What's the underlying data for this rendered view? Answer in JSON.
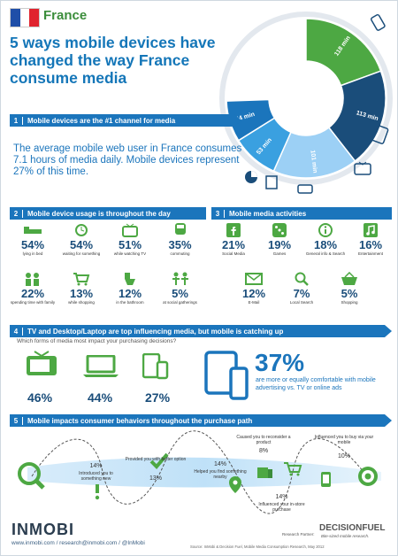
{
  "header": {
    "country": "France",
    "title": "5 ways mobile devices have changed the way France consume media"
  },
  "donut": {
    "segments": [
      {
        "label": "118 min",
        "color": "#4da843"
      },
      {
        "label": "113 min",
        "color": "#1a4d7a"
      },
      {
        "label": "101 min",
        "color": "#9cd0f5"
      },
      {
        "label": "53 min",
        "color": "#3aa0e0"
      },
      {
        "label": "44 min",
        "color": "#1b75bc"
      }
    ]
  },
  "section1": {
    "num": "1",
    "title": "Mobile devices are the #1 channel for media",
    "body": "The average mobile web user in France consumes 7.1 hours of media daily. Mobile devices represent 27% of this time."
  },
  "section2": {
    "num": "2",
    "title": "Mobile device usage is throughout the day",
    "items": [
      {
        "pct": "54%",
        "label": "lying in bed",
        "icon": "bed-icon"
      },
      {
        "pct": "54%",
        "label": "waiting for something",
        "icon": "clock-icon"
      },
      {
        "pct": "51%",
        "label": "while watching TV",
        "icon": "tv-icon"
      },
      {
        "pct": "35%",
        "label": "commuting",
        "icon": "train-icon"
      },
      {
        "pct": "22%",
        "label": "spending time with family",
        "icon": "family-icon"
      },
      {
        "pct": "13%",
        "label": "while shopping",
        "icon": "cart-icon"
      },
      {
        "pct": "12%",
        "label": "in the bathroom",
        "icon": "toilet-icon"
      },
      {
        "pct": "5%",
        "label": "at social gatherings",
        "icon": "party-icon"
      }
    ]
  },
  "section3": {
    "num": "3",
    "title": "Mobile media activities",
    "items": [
      {
        "pct": "21%",
        "label": "Social Media",
        "icon": "facebook-icon"
      },
      {
        "pct": "19%",
        "label": "Games",
        "icon": "dice-icon"
      },
      {
        "pct": "18%",
        "label": "General info & Search",
        "icon": "info-icon"
      },
      {
        "pct": "16%",
        "label": "Entertainment",
        "icon": "music-icon"
      },
      {
        "pct": "12%",
        "label": "E-Mail",
        "icon": "envelope-icon"
      },
      {
        "pct": "7%",
        "label": "Local Search",
        "icon": "magnifier-icon"
      },
      {
        "pct": "5%",
        "label": "Shopping",
        "icon": "basket-icon"
      }
    ]
  },
  "section4": {
    "num": "4",
    "title": "TV and Desktop/Laptop are top influencing media, but mobile is catching up",
    "question": "Which forms of media most impact your purchasing decisions?",
    "devices": [
      {
        "pct": "46%",
        "icon": "tv-icon"
      },
      {
        "pct": "44%",
        "icon": "laptop-icon"
      },
      {
        "pct": "27%",
        "icon": "tablet-phone-icon"
      }
    ],
    "big_pct": "37%",
    "big_text": "are more or equally comfortable with mobile advertising vs. TV or online ads"
  },
  "section5": {
    "num": "5",
    "title": "Mobile impacts consumer behaviors throughout the purchase path",
    "steps": [
      {
        "pct": "14%",
        "label": "Introduced you to something new"
      },
      {
        "pct": "13%",
        "label": "Provided you with better option"
      },
      {
        "pct": "14%",
        "label": "Helped you find something nearby"
      },
      {
        "pct": "8%",
        "label": "Caused you to reconsider a product"
      },
      {
        "pct": "14%",
        "label": "Influenced your in-store purchase"
      },
      {
        "pct": "10%",
        "label": "Influenced you to buy via your mobile"
      }
    ]
  },
  "footer": {
    "logo": "INMOBI",
    "links": "www.inmobi.com  /  research@inmobi.com  /  @InMobi",
    "partner_label": "Research Partner:",
    "partner_name": "DECISIONFUEL",
    "partner_tagline": "Bite-sized mobile research.",
    "source": "Source: InMobi & Decision Fuel, Mobile Media Consumption Research, May 2012"
  }
}
